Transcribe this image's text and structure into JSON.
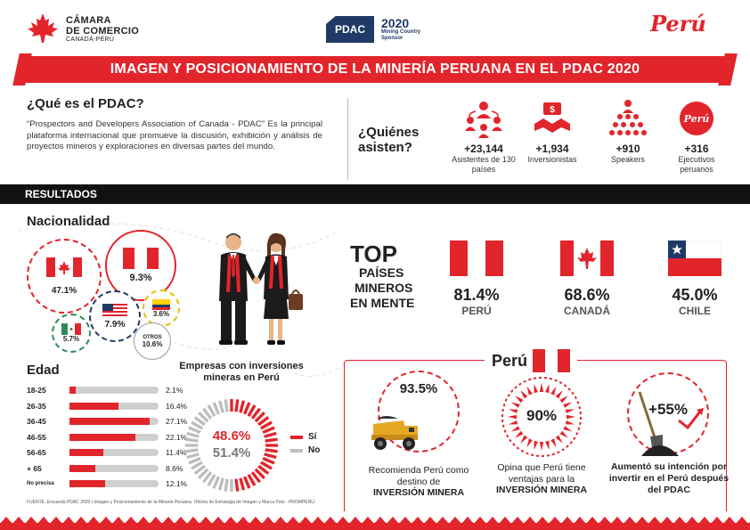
{
  "header": {
    "chamber_line1": "CÁMARA",
    "chamber_line2": "DE COMERCIO",
    "chamber_line3": "CANADÁ-PERÚ",
    "pdac_badge": "PDAC",
    "pdac_year": "2020",
    "pdac_sub1": "Mining Country",
    "pdac_sub2": "Sponsor",
    "peru_brand": "Perú"
  },
  "title": "IMAGEN Y POSICIONAMIENTO DE LA MINERÍA PERUANA EN EL PDAC 2020",
  "pdac_section": {
    "question": "¿Qué es el PDAC?",
    "description": "“Prospectors and Developers Association of Canada - PDAC” Es la principal plataforma internacional que promueve la discusión, exhibición y análisis de proyectos mineros y exploraciones en diversas partes del mundo."
  },
  "attendees": {
    "question_line1": "¿Quiénes",
    "question_line2": "asisten?",
    "items": [
      {
        "icon": "group-people-icon",
        "value": "+23,144",
        "label": "Asistentes de 130 países"
      },
      {
        "icon": "investor-handshake-icon",
        "value": "+1,934",
        "label": "Inversionistas"
      },
      {
        "icon": "speakers-audience-icon",
        "value": "+910",
        "label": "Speakers"
      },
      {
        "icon": "peru-logo-icon",
        "value": "+316",
        "label": "Ejecutivos peruanos"
      }
    ]
  },
  "results_label": "RESULTADOS",
  "nationality": {
    "title": "Nacionalidad",
    "items": [
      {
        "country": "Canadá",
        "value": "47.1%"
      },
      {
        "country": "Perú",
        "value": "9.3%"
      },
      {
        "country": "Estados Unidos",
        "value": "7.9%"
      },
      {
        "country": "Ecuador",
        "value": "3.6%"
      },
      {
        "country": "México",
        "value": "5.7%"
      },
      {
        "country": "Otros",
        "label": "OTROS",
        "value": "10.6%"
      }
    ]
  },
  "age": {
    "title": "Edad",
    "rows": [
      {
        "label": "18-25",
        "value": 2.1,
        "text": "2.1%"
      },
      {
        "label": "26-35",
        "value": 16.4,
        "text": "16.4%"
      },
      {
        "label": "36-45",
        "value": 27.1,
        "text": "27.1%"
      },
      {
        "label": "46-55",
        "value": 22.1,
        "text": "22.1%"
      },
      {
        "label": "56-65",
        "value": 11.4,
        "text": "11.4%"
      },
      {
        "label": "+ 65",
        "value": 8.6,
        "text": "8.6%"
      },
      {
        "label": "No precisa",
        "value": 12.1,
        "text": "12.1%"
      }
    ]
  },
  "investments": {
    "title": "Empresas con inversiones mineras en Perú",
    "yes_value": 48.6,
    "yes_text": "48.6%",
    "no_value": 51.4,
    "no_text": "51.4%",
    "yes_label": "Sí",
    "no_label": "No",
    "colors": {
      "yes": "#e2242b",
      "no": "#bdbdbd"
    }
  },
  "top_countries": {
    "title_big": "TOP",
    "title_line1": "PAÍSES",
    "title_line2": "MINEROS",
    "title_line3": "EN MENTE",
    "items": [
      {
        "country": "PERÚ",
        "value": "81.4%"
      },
      {
        "country": "CANADÁ",
        "value": "68.6%"
      },
      {
        "country": "CHILE",
        "value": "45.0%"
      }
    ]
  },
  "peru": {
    "title": "Perú",
    "cards": [
      {
        "value": "93.5%",
        "icon": "mining-truck-icon",
        "caption_pre": "Recomienda Perú como destino de",
        "caption_bold": "INVERSIÓN MINERA"
      },
      {
        "value": "90%",
        "icon": "advantage-icon",
        "caption_pre": "Opina que Perú tiene ventajas para la",
        "caption_bold": "INVERSIÓN MINERA"
      },
      {
        "value": "+55%",
        "icon": "shovel-growth-icon",
        "caption_pre": "Aumentó su intención por invertir en el Perú después del PDAC",
        "caption_bold": ""
      }
    ]
  },
  "source": "FUENTE: Encuesta PDAC 2020 | Imagen y Posicionamiento de la Minería Peruana. Oficina de Estrategia de Imagen y Marca País - PROMPERÚ.",
  "colors": {
    "accent": "#e2242b",
    "dark": "#111111",
    "navy": "#1f3a66"
  }
}
